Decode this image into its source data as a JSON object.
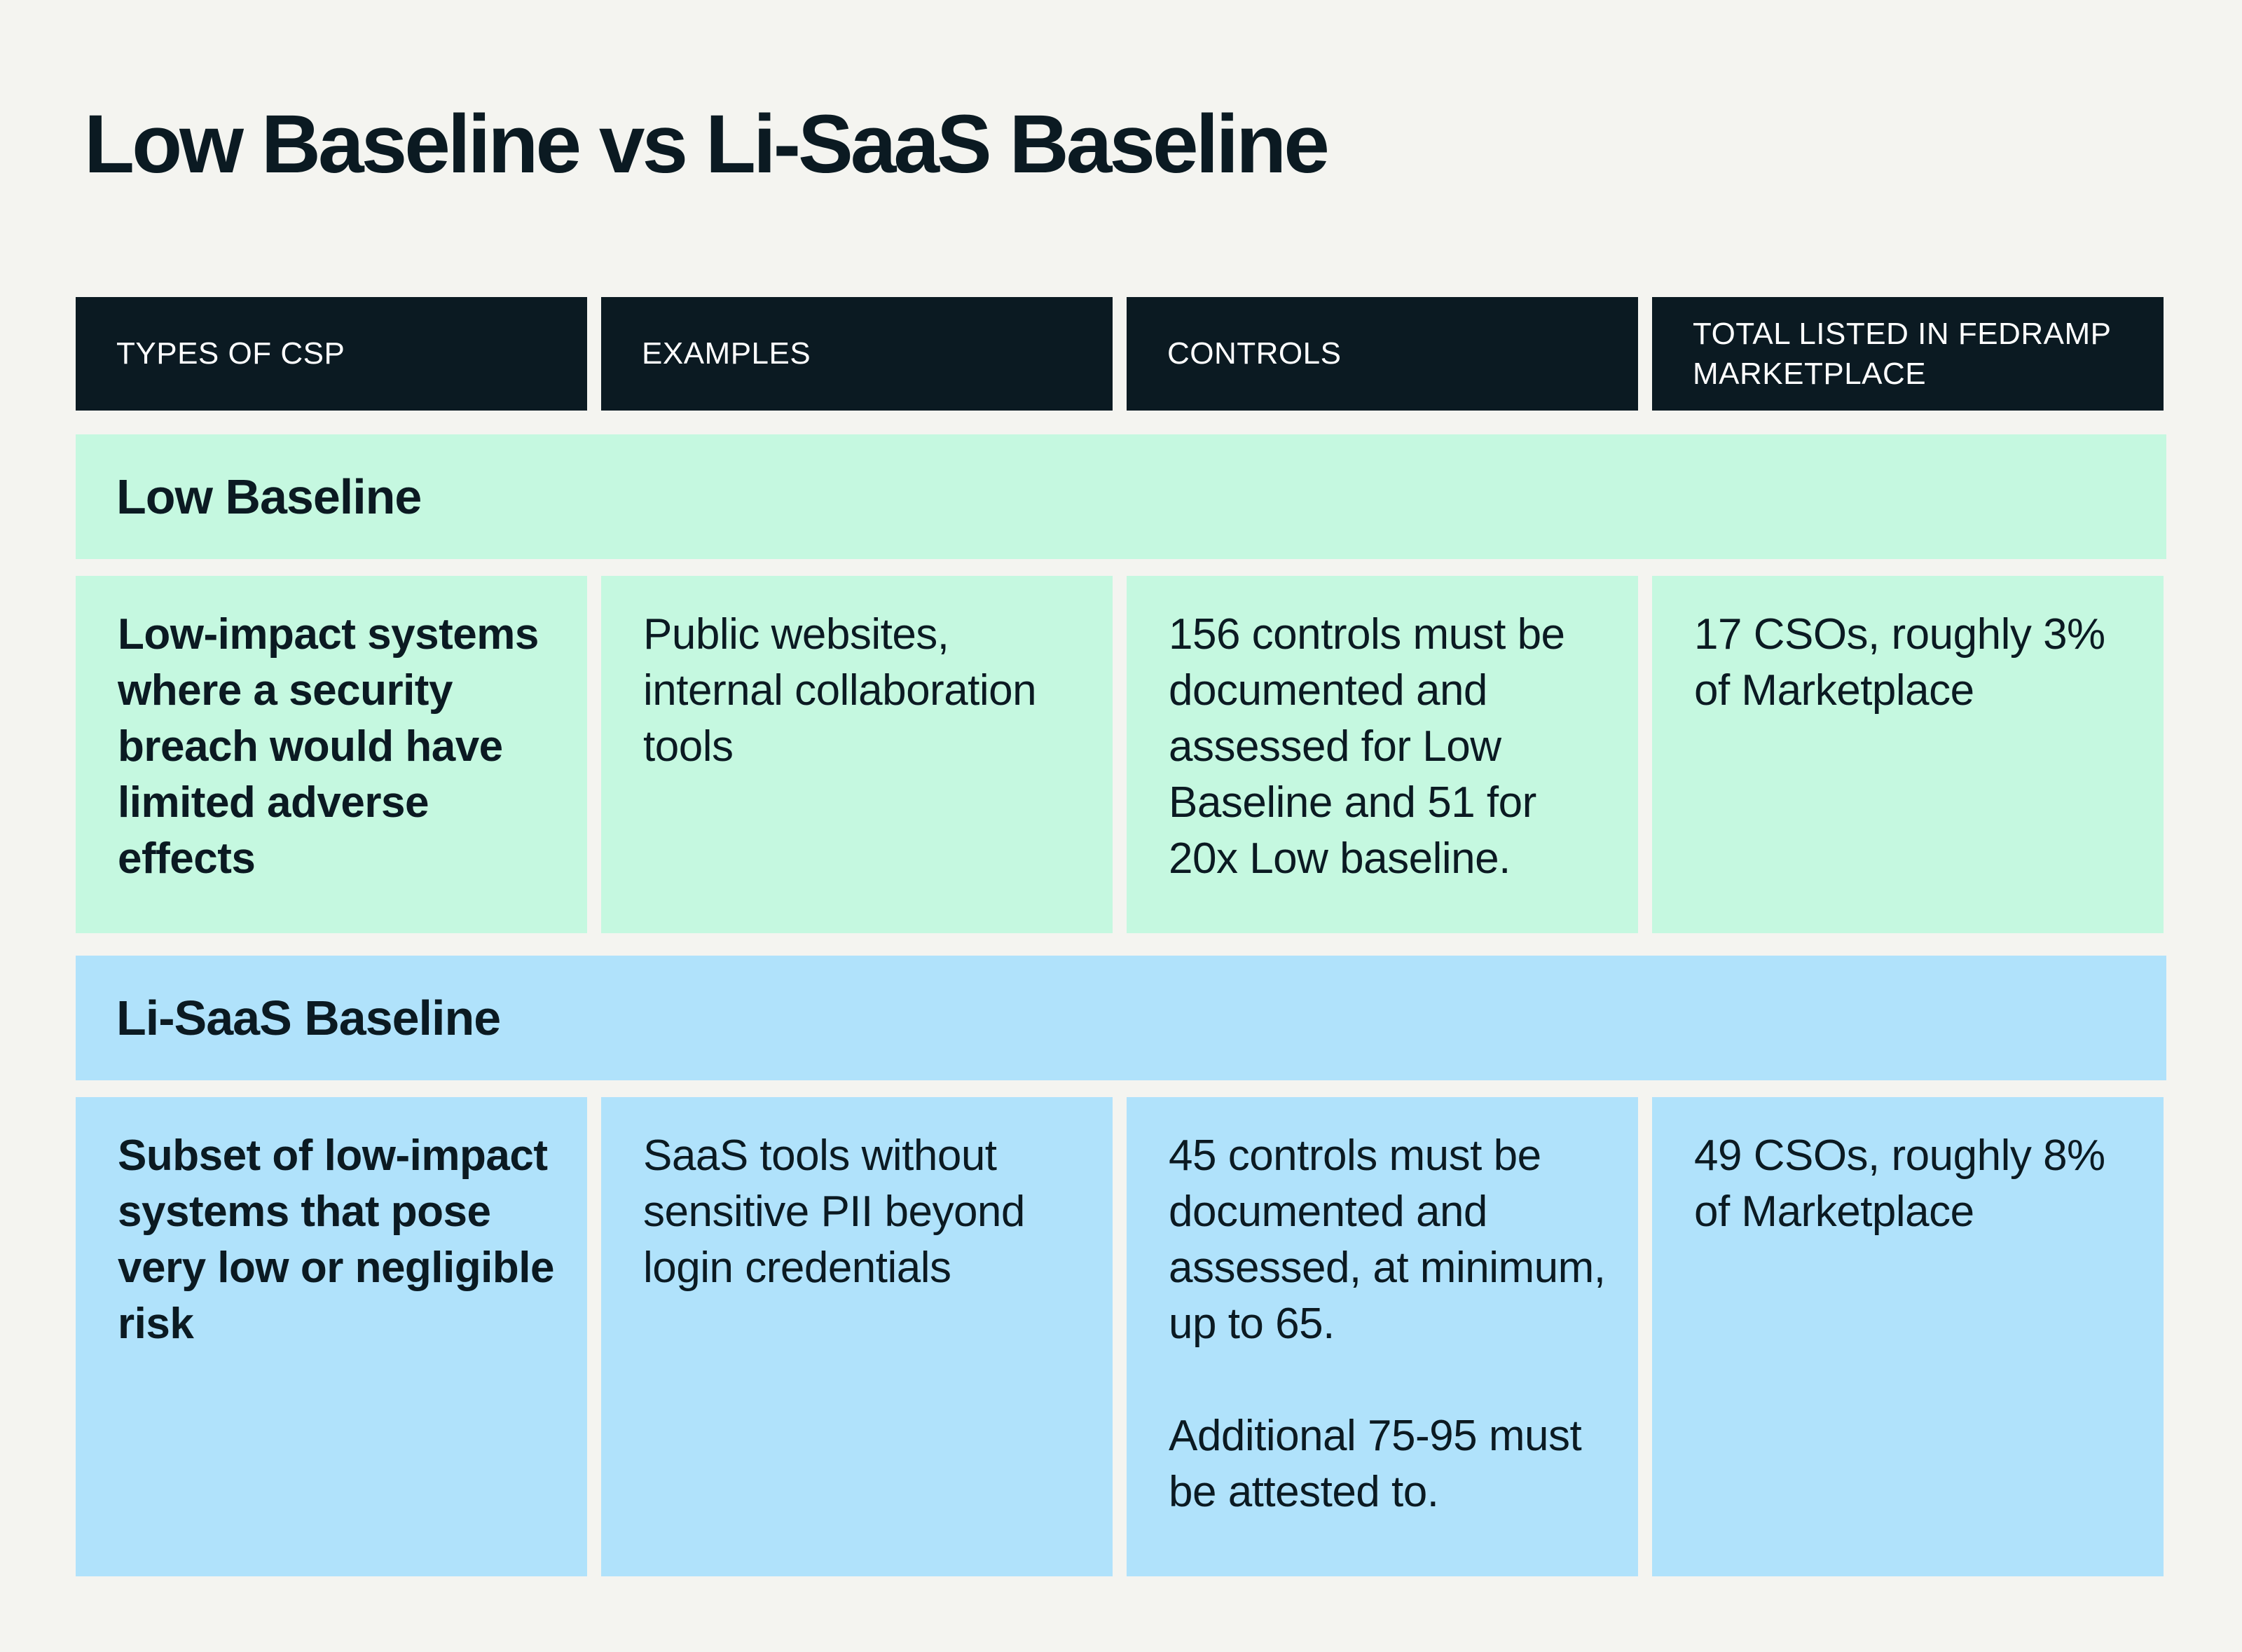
{
  "title": "Low Baseline vs Li-SaaS Baseline",
  "table": {
    "headers": [
      "TYPES OF CSP",
      "EXAMPLES",
      "CONTROLS",
      "TOTAL LISTED IN FEDRAMP MARKETPLACE"
    ],
    "sections": [
      {
        "name": "Low Baseline",
        "color": "#c5f8e0",
        "type": "Low-impact systems where a security breach would have limited adverse effects",
        "examples": "Public websites, internal collaboration tools",
        "controls": [
          "156 controls must be documented and assessed for Low Baseline and 51 for 20x Low baseline."
        ],
        "total": "17 CSOs, roughly 3% of Marketplace"
      },
      {
        "name": "Li-SaaS Baseline",
        "color": "#b0e2fb",
        "type": "Subset of low-impact systems that pose very low or negligible risk",
        "examples": "SaaS tools without sensitive PII beyond login credentials",
        "controls": [
          "45 controls must be documented and assessed, at minimum, up to 65.",
          "Additional 75-95 must be attested to."
        ],
        "total": "49 CSOs, roughly 8% of Marketplace"
      }
    ]
  },
  "colors": {
    "background": "#f4f4f0",
    "header_background": "#0b1a22",
    "header_text": "#ffffff",
    "text": "#0b1a22"
  }
}
